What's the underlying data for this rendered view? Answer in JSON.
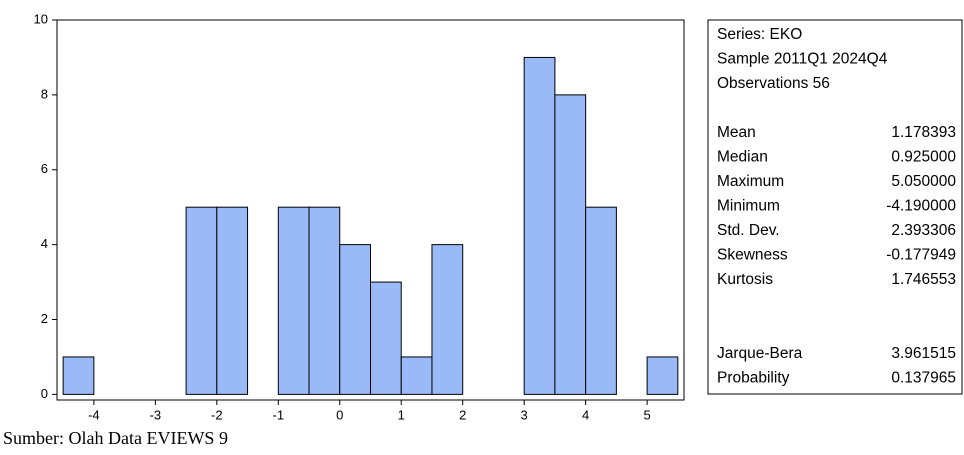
{
  "chart_data": {
    "type": "histogram",
    "bins": [
      -4.5,
      -4,
      -3.5,
      -3,
      -2.5,
      -2,
      -1.5,
      -1,
      -0.5,
      0,
      0.5,
      1,
      1.5,
      2,
      2.5,
      3,
      3.5,
      4,
      4.5,
      5,
      5.5
    ],
    "values": [
      1,
      0,
      0,
      0,
      5,
      5,
      0,
      5,
      5,
      4,
      3,
      1,
      4,
      0,
      0,
      9,
      8,
      5,
      0,
      1
    ],
    "color": "#9abaf7",
    "xlim": [
      -4.6,
      5.6
    ],
    "xticks": [
      -4,
      -3,
      -2,
      -1,
      0,
      1,
      2,
      3,
      4,
      5
    ],
    "ylim": [
      -0.15,
      10
    ],
    "yticks": [
      0,
      2,
      4,
      6,
      8,
      10
    ]
  },
  "stats": {
    "header": [
      "Series: EKO",
      "Sample 2011Q1 2024Q4",
      "Observations 56"
    ],
    "summary": [
      [
        "Mean",
        "1.178393"
      ],
      [
        "Median",
        "0.925000"
      ],
      [
        "Maximum",
        "5.050000"
      ],
      [
        "Minimum",
        "-4.190000"
      ],
      [
        "Std. Dev.",
        "2.393306"
      ],
      [
        "Skewness",
        "-0.177949"
      ],
      [
        "Kurtosis",
        "1.746553"
      ]
    ],
    "tests": [
      [
        "Jarque-Bera",
        "3.961515"
      ],
      [
        "Probability",
        "0.137965"
      ]
    ]
  },
  "source": "Sumber: Olah Data EVIEWS 9"
}
